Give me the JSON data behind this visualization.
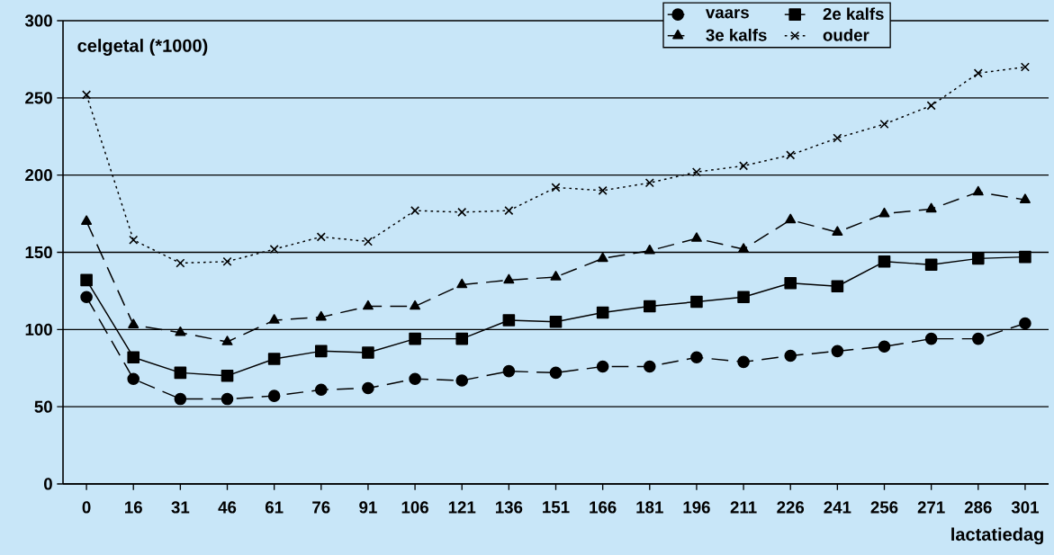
{
  "chart_data": {
    "type": "line",
    "ylabel": "celgetal (*1000)",
    "xlabel": "lactatiedag",
    "categories": [
      "0",
      "16",
      "31",
      "46",
      "61",
      "76",
      "91",
      "106",
      "121",
      "136",
      "151",
      "166",
      "181",
      "196",
      "211",
      "226",
      "241",
      "256",
      "271",
      "286",
      "301"
    ],
    "ylim": [
      0,
      300
    ],
    "yticks": [
      0,
      50,
      100,
      150,
      200,
      250,
      300
    ],
    "grid": "y",
    "legend": "top right",
    "series": [
      {
        "name": "vaars",
        "color": "#000000",
        "marker": "circle",
        "line_style": "dashed",
        "values": [
          121,
          68,
          55,
          55,
          57,
          61,
          62,
          68,
          67,
          73,
          72,
          76,
          76,
          82,
          79,
          83,
          86,
          89,
          94,
          94,
          104
        ]
      },
      {
        "name": "2e kalfs",
        "color": "#000000",
        "marker": "square",
        "line_style": "solid",
        "values": [
          132,
          82,
          72,
          70,
          81,
          86,
          85,
          94,
          94,
          106,
          105,
          111,
          115,
          118,
          121,
          130,
          128,
          144,
          142,
          146,
          147
        ]
      },
      {
        "name": "3e kalfs",
        "color": "#000000",
        "marker": "triangle",
        "line_style": "dashed",
        "values": [
          170,
          103,
          98,
          92,
          106,
          108,
          115,
          115,
          129,
          132,
          134,
          146,
          151,
          159,
          152,
          171,
          163,
          175,
          178,
          189,
          184
        ]
      },
      {
        "name": "ouder",
        "color": "#000000",
        "marker": "cross",
        "line_style": "dotted",
        "values": [
          252,
          158,
          143,
          144,
          152,
          160,
          157,
          177,
          176,
          177,
          192,
          190,
          195,
          202,
          206,
          213,
          224,
          233,
          245,
          266,
          270
        ]
      }
    ]
  }
}
